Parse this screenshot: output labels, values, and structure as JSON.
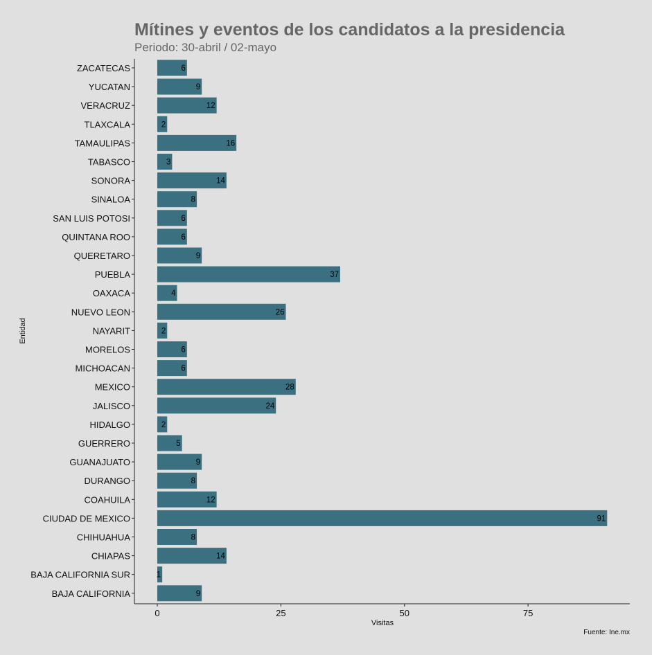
{
  "colors": {
    "background": "#e0e0e0",
    "bar": "#3a7080",
    "axis": "#222222",
    "text": "#111111",
    "title": "#666666"
  },
  "chart_data": {
    "type": "bar",
    "orientation": "horizontal",
    "title": "Mítines y eventos de los candidatos a la presidencia",
    "subtitle": "Periodo: 30-abril / 02-mayo",
    "xlabel": "Visitas",
    "ylabel": "Entidad",
    "caption": "Fuente: Ine.mx",
    "xlim": [
      0,
      95
    ],
    "xticks": [
      0,
      25,
      50,
      75
    ],
    "grid": false,
    "categories": [
      "ZACATECAS",
      "YUCATAN",
      "VERACRUZ",
      "TLAXCALA",
      "TAMAULIPAS",
      "TABASCO",
      "SONORA",
      "SINALOA",
      "SAN LUIS POTOSI",
      "QUINTANA ROO",
      "QUERETARO",
      "PUEBLA",
      "OAXACA",
      "NUEVO LEON",
      "NAYARIT",
      "MORELOS",
      "MICHOACAN",
      "MEXICO",
      "JALISCO",
      "HIDALGO",
      "GUERRERO",
      "GUANAJUATO",
      "DURANGO",
      "COAHUILA",
      "CIUDAD DE MEXICO",
      "CHIHUAHUA",
      "CHIAPAS",
      "BAJA CALIFORNIA SUR",
      "BAJA CALIFORNIA"
    ],
    "values": [
      6,
      9,
      12,
      2,
      16,
      3,
      14,
      8,
      6,
      6,
      9,
      37,
      4,
      26,
      2,
      6,
      6,
      28,
      24,
      2,
      5,
      9,
      8,
      12,
      91,
      8,
      14,
      1,
      9
    ]
  }
}
